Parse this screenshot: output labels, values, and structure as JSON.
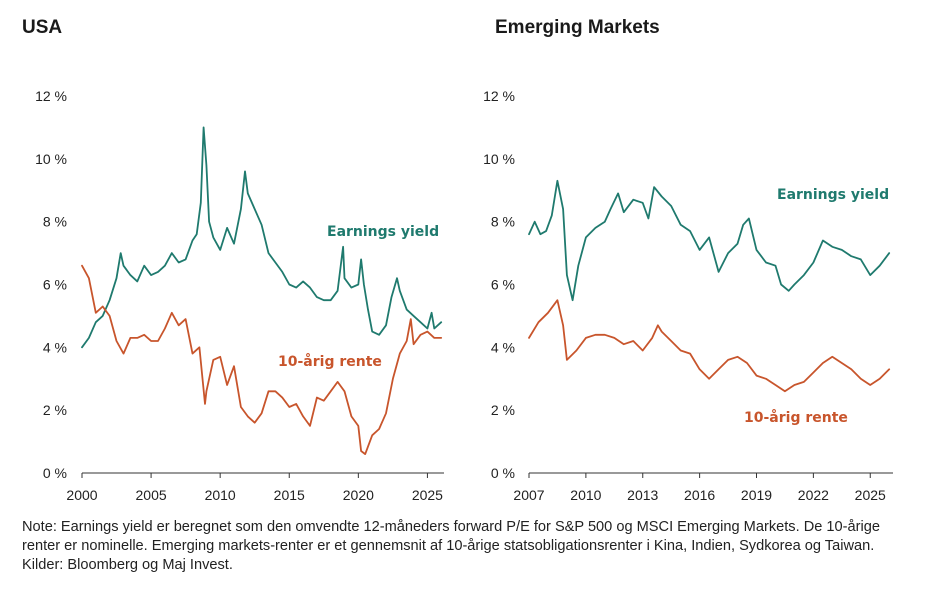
{
  "colors": {
    "earnings": "#1f7a6e",
    "rate": "#c8552c"
  },
  "note": "Note: Earnings yield er beregnet som den omvendte 12-måneders forward P/E for S&P 500 og MSCI Emerging Markets. De 10-årige renter er nominelle. Emerging markets-renter er et gennemsnit af 10-årige statsobligationsrenter i Kina, Indien, Sydkorea og Taiwan.",
  "sources": "Kilder: Bloomberg og Maj Invest.",
  "chart_data": [
    {
      "type": "line",
      "title": "USA",
      "xlim": [
        2000,
        2026.2
      ],
      "ylim": [
        0,
        12
      ],
      "x_ticks": [
        2000,
        2005,
        2010,
        2015,
        2020,
        2025
      ],
      "x_tick_labels": [
        "2000",
        "2005",
        "2010",
        "2015",
        "2020",
        "2025"
      ],
      "y_ticks": [
        0,
        2,
        4,
        6,
        8,
        10,
        12
      ],
      "y_tick_labels": [
        "0 %",
        "2 %",
        "4 %",
        "6 %",
        "8 %",
        "10 %",
        "12 %"
      ],
      "grid": false,
      "series": [
        {
          "name": "Earnings yield",
          "color": "#1f7a6e",
          "x": [
            2000,
            2000.5,
            2001,
            2001.5,
            2002,
            2002.5,
            2002.8,
            2003,
            2003.5,
            2004,
            2004.5,
            2005,
            2005.5,
            2006,
            2006.5,
            2007,
            2007.5,
            2008,
            2008.3,
            2008.6,
            2008.8,
            2009,
            2009.2,
            2009.5,
            2010,
            2010.5,
            2011,
            2011.5,
            2011.8,
            2012,
            2012.5,
            2013,
            2013.5,
            2014,
            2014.5,
            2015,
            2015.5,
            2016,
            2016.5,
            2017,
            2017.5,
            2018,
            2018.5,
            2018.9,
            2019,
            2019.5,
            2020,
            2020.2,
            2020.4,
            2020.7,
            2021,
            2021.5,
            2022,
            2022.4,
            2022.8,
            2023,
            2023.5,
            2024,
            2024.5,
            2025,
            2025.3,
            2025.5,
            2026
          ],
          "y": [
            4.0,
            4.3,
            4.8,
            5.0,
            5.5,
            6.2,
            7.0,
            6.6,
            6.3,
            6.1,
            6.6,
            6.3,
            6.4,
            6.6,
            7.0,
            6.7,
            6.8,
            7.4,
            7.6,
            8.6,
            11.0,
            9.8,
            8.0,
            7.5,
            7.1,
            7.8,
            7.3,
            8.4,
            9.6,
            8.9,
            8.4,
            7.9,
            7.0,
            6.7,
            6.4,
            6.0,
            5.9,
            6.1,
            5.9,
            5.6,
            5.5,
            5.5,
            5.8,
            7.2,
            6.2,
            5.9,
            6.0,
            6.8,
            6.0,
            5.2,
            4.5,
            4.4,
            4.7,
            5.6,
            6.2,
            5.8,
            5.2,
            5.0,
            4.8,
            4.6,
            5.1,
            4.6,
            4.8
          ]
        },
        {
          "name": "10-årig rente",
          "color": "#c8552c",
          "x": [
            2000,
            2000.5,
            2001,
            2001.5,
            2002,
            2002.5,
            2003,
            2003.5,
            2004,
            2004.5,
            2005,
            2005.5,
            2006,
            2006.5,
            2007,
            2007.5,
            2008,
            2008.5,
            2008.9,
            2009,
            2009.5,
            2010,
            2010.5,
            2011,
            2011.5,
            2012,
            2012.5,
            2013,
            2013.5,
            2014,
            2014.5,
            2015,
            2015.5,
            2016,
            2016.5,
            2017,
            2017.5,
            2018,
            2018.5,
            2019,
            2019.5,
            2020,
            2020.2,
            2020.5,
            2021,
            2021.5,
            2022,
            2022.5,
            2023,
            2023.5,
            2023.8,
            2024,
            2024.5,
            2025,
            2025.5,
            2026
          ],
          "y": [
            6.6,
            6.2,
            5.1,
            5.3,
            5.0,
            4.2,
            3.8,
            4.3,
            4.3,
            4.4,
            4.2,
            4.2,
            4.6,
            5.1,
            4.7,
            4.9,
            3.8,
            4.0,
            2.2,
            2.6,
            3.6,
            3.7,
            2.8,
            3.4,
            2.1,
            1.8,
            1.6,
            1.9,
            2.6,
            2.6,
            2.4,
            2.1,
            2.2,
            1.8,
            1.5,
            2.4,
            2.3,
            2.6,
            2.9,
            2.6,
            1.8,
            1.5,
            0.7,
            0.6,
            1.2,
            1.4,
            1.9,
            3.0,
            3.8,
            4.2,
            4.9,
            4.1,
            4.4,
            4.5,
            4.3,
            4.3
          ]
        }
      ]
    },
    {
      "type": "line",
      "title": "Emerging Markets",
      "xlim": [
        2007,
        2026.2
      ],
      "ylim": [
        0,
        12
      ],
      "x_ticks": [
        2007,
        2010,
        2013,
        2016,
        2019,
        2022,
        2025
      ],
      "x_tick_labels": [
        "2007",
        "2010",
        "2013",
        "2016",
        "2019",
        "2022",
        "2025"
      ],
      "y_ticks": [
        0,
        2,
        4,
        6,
        8,
        10,
        12
      ],
      "y_tick_labels": [
        "0 %",
        "2 %",
        "4 %",
        "6 %",
        "8 %",
        "10 %",
        "12 %"
      ],
      "grid": false,
      "series": [
        {
          "name": "Earnings yield",
          "color": "#1f7a6e",
          "x": [
            2007,
            2007.3,
            2007.6,
            2007.9,
            2008.2,
            2008.5,
            2008.8,
            2009,
            2009.3,
            2009.6,
            2010,
            2010.5,
            2011,
            2011.3,
            2011.7,
            2012,
            2012.5,
            2013,
            2013.3,
            2013.6,
            2014,
            2014.5,
            2015,
            2015.5,
            2016,
            2016.5,
            2017,
            2017.5,
            2018,
            2018.3,
            2018.6,
            2019,
            2019.5,
            2020,
            2020.3,
            2020.7,
            2021,
            2021.5,
            2022,
            2022.5,
            2023,
            2023.5,
            2024,
            2024.5,
            2025,
            2025.5,
            2026
          ],
          "y": [
            7.6,
            8.0,
            7.6,
            7.7,
            8.2,
            9.3,
            8.4,
            6.3,
            5.5,
            6.6,
            7.5,
            7.8,
            8.0,
            8.4,
            8.9,
            8.3,
            8.7,
            8.6,
            8.1,
            9.1,
            8.8,
            8.5,
            7.9,
            7.7,
            7.1,
            7.5,
            6.4,
            7.0,
            7.3,
            7.9,
            8.1,
            7.1,
            6.7,
            6.6,
            6.0,
            5.8,
            6.0,
            6.3,
            6.7,
            7.4,
            7.2,
            7.1,
            6.9,
            6.8,
            6.3,
            6.6,
            7.0
          ]
        },
        {
          "name": "10-årig rente",
          "color": "#c8552c",
          "x": [
            2007,
            2007.5,
            2008,
            2008.5,
            2008.8,
            2009,
            2009.5,
            2010,
            2010.5,
            2011,
            2011.5,
            2012,
            2012.5,
            2013,
            2013.5,
            2013.8,
            2014,
            2014.5,
            2015,
            2015.5,
            2016,
            2016.5,
            2017,
            2017.5,
            2018,
            2018.5,
            2019,
            2019.5,
            2020,
            2020.5,
            2021,
            2021.5,
            2022,
            2022.5,
            2023,
            2023.5,
            2024,
            2024.5,
            2025,
            2025.5,
            2026
          ],
          "y": [
            4.3,
            4.8,
            5.1,
            5.5,
            4.7,
            3.6,
            3.9,
            4.3,
            4.4,
            4.4,
            4.3,
            4.1,
            4.2,
            3.9,
            4.3,
            4.7,
            4.5,
            4.2,
            3.9,
            3.8,
            3.3,
            3.0,
            3.3,
            3.6,
            3.7,
            3.5,
            3.1,
            3.0,
            2.8,
            2.6,
            2.8,
            2.9,
            3.2,
            3.5,
            3.7,
            3.5,
            3.3,
            3.0,
            2.8,
            3.0,
            3.3
          ]
        }
      ]
    }
  ]
}
